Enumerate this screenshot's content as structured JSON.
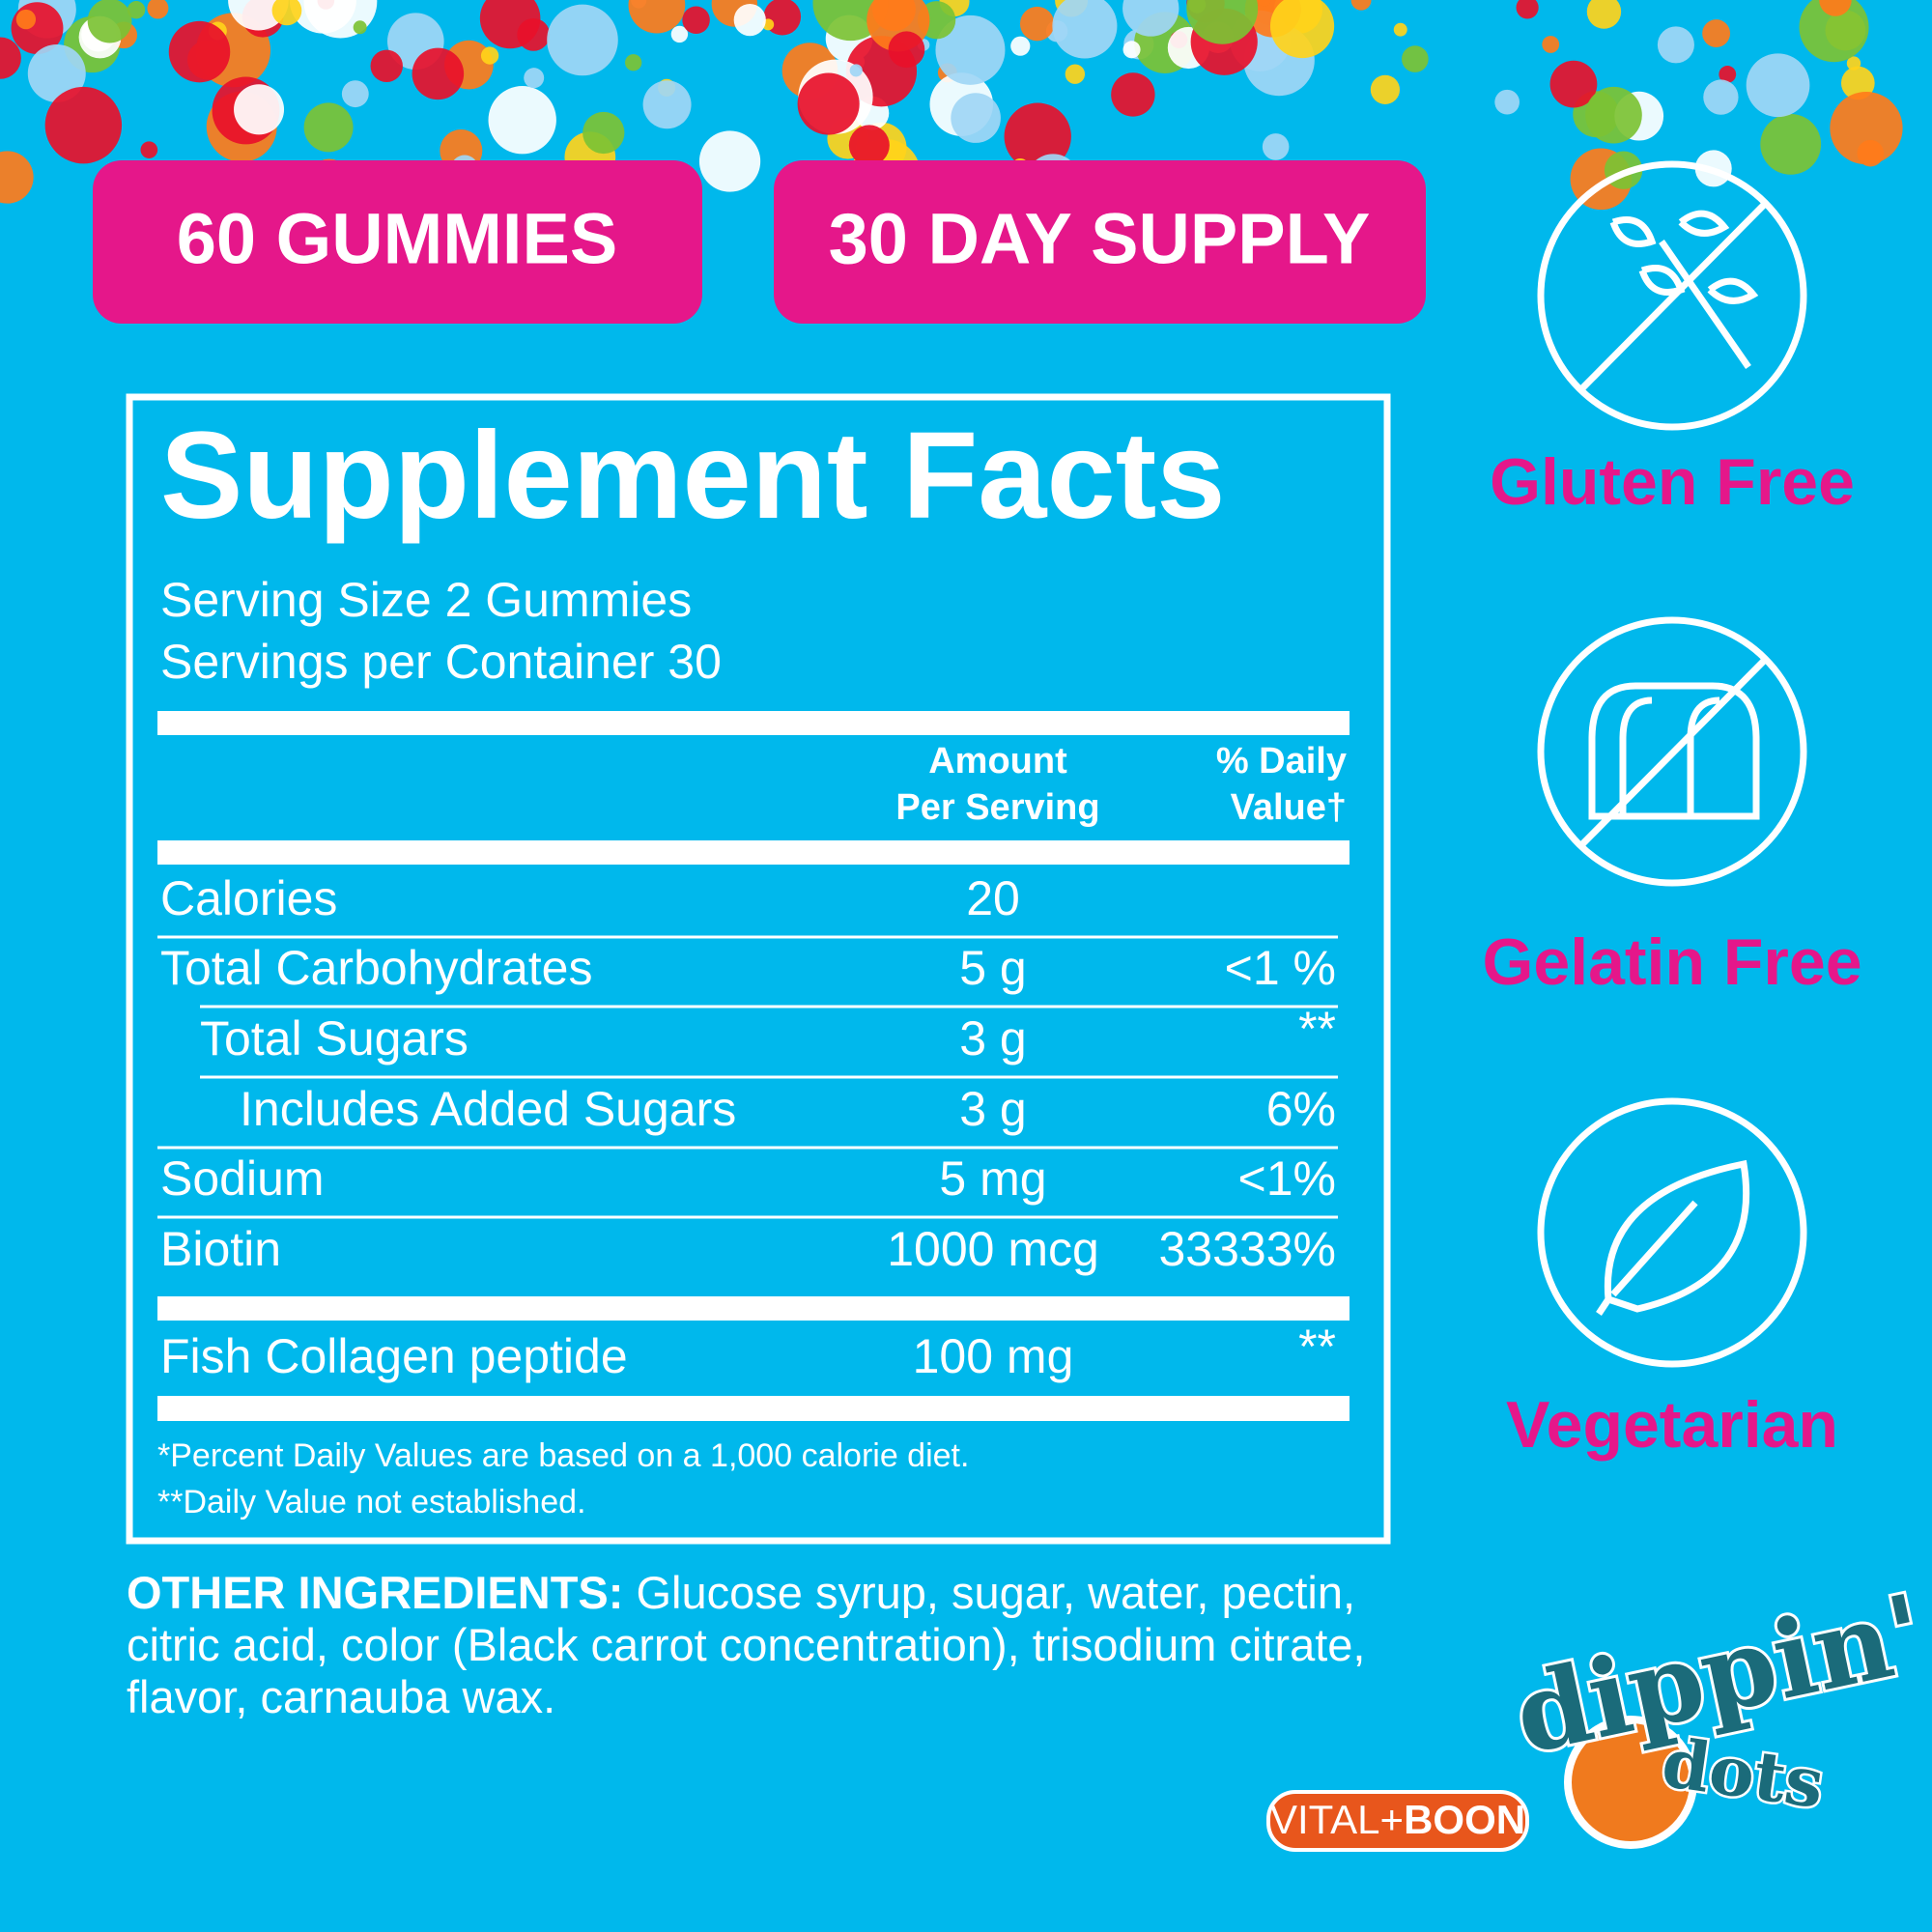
{
  "badges": [
    "60 GUMMIES",
    "30 DAY SUPPLY"
  ],
  "facts": {
    "title": "Supplement Facts",
    "serving_size": "Serving Size 2 Gummies",
    "servings_per_container": "Servings per Container 30",
    "header": {
      "amount": [
        "Amount",
        "Per Serving"
      ],
      "daily_value": [
        "% Daily",
        "Value†"
      ]
    },
    "rows": [
      {
        "name": "Calories",
        "amount": "20"
      },
      {
        "name": "Total Carbohydrates",
        "amount": "5 g",
        "daily_value": "<1 %"
      },
      {
        "name": "Total Sugars",
        "amount": "3 g",
        "daily_value": "**"
      },
      {
        "name": "Includes Added Sugars",
        "amount": "3 g",
        "daily_value": "6%"
      },
      {
        "name": "Sodium",
        "amount": "5 mg",
        "daily_value": "<1%"
      },
      {
        "name": "Biotin",
        "amount": "1000 mcg",
        "daily_value": "33333%"
      },
      {
        "name": "Fish Collagen peptide",
        "amount": "100 mg",
        "daily_value": "**"
      }
    ],
    "footnotes": [
      "*Percent Daily Values are based on a 1,000 calorie diet.",
      "**Daily Value not established."
    ]
  },
  "icons": [
    "Gluten Free",
    "Gelatin Free",
    "Vegetarian"
  ],
  "ingredients": {
    "label": "OTHER INGREDIENTS:",
    "text": "Glucose syrup, sugar, water, pectin, citric acid, color (Black carrot concentration), trisodium citrate, flavor, carnauba wax."
  },
  "logos": {
    "brand": [
      "dippin'",
      "dots"
    ],
    "maker": [
      "VITAL+",
      "BOON"
    ]
  }
}
